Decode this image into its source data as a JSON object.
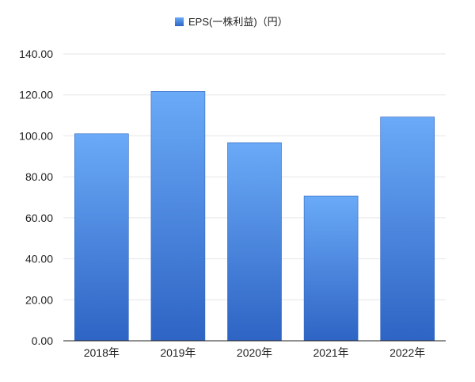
{
  "chart_data": {
    "type": "bar",
    "categories": [
      "2018年",
      "2019年",
      "2020年",
      "2021年",
      "2022年"
    ],
    "series": [
      {
        "name": "EPS(一株利益)（円）",
        "values": [
          101.0,
          121.7,
          96.7,
          70.7,
          109.2
        ]
      }
    ],
    "ylim": [
      0,
      140
    ],
    "yticks": [
      "0.00",
      "20.00",
      "40.00",
      "60.00",
      "80.00",
      "100.00",
      "120.00",
      "140.00"
    ],
    "grid": true,
    "legend_position": "top-center",
    "colors": {
      "bar_top": "#6aaaf7",
      "bar_bottom": "#2e64c4",
      "bar_stroke": "#2a5fbf",
      "grid": "#e6e6e6",
      "axis": "#222222",
      "text": "#222222"
    }
  }
}
